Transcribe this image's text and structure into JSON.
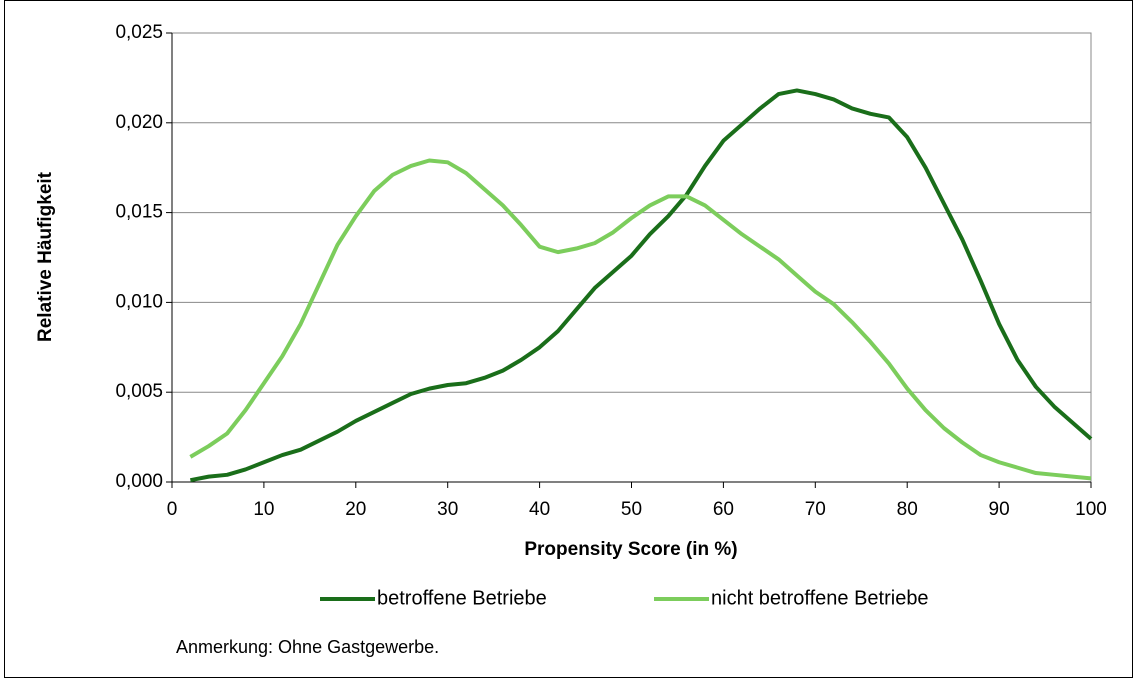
{
  "chart_data": {
    "type": "line",
    "xlabel": "Propensity Score (in %)",
    "ylabel": "Relative Häufigkeit",
    "annotation": "Anmerkung: Ohne Gastgewerbe.",
    "x": [
      2,
      4,
      6,
      8,
      10,
      12,
      14,
      16,
      18,
      20,
      22,
      24,
      26,
      28,
      30,
      32,
      34,
      36,
      38,
      40,
      42,
      44,
      46,
      48,
      50,
      52,
      54,
      56,
      58,
      60,
      62,
      64,
      66,
      68,
      70,
      72,
      74,
      76,
      78,
      80,
      82,
      84,
      86,
      88,
      90,
      92,
      94,
      96,
      98,
      100
    ],
    "series": [
      {
        "name": "betroffene Betriebe",
        "color": "#1a6e1a",
        "values": [
          0.0001,
          0.0003,
          0.0004,
          0.0007,
          0.0011,
          0.0015,
          0.0018,
          0.0023,
          0.0028,
          0.0034,
          0.0039,
          0.0044,
          0.0049,
          0.0052,
          0.0054,
          0.0055,
          0.0058,
          0.0062,
          0.0068,
          0.0075,
          0.0084,
          0.0096,
          0.0108,
          0.0117,
          0.0126,
          0.0138,
          0.0148,
          0.016,
          0.0176,
          0.019,
          0.0199,
          0.0208,
          0.0216,
          0.0218,
          0.0216,
          0.0213,
          0.0208,
          0.0205,
          0.0203,
          0.0192,
          0.0175,
          0.0155,
          0.0135,
          0.0112,
          0.0088,
          0.0068,
          0.0053,
          0.0042,
          0.0033,
          0.0024
        ]
      },
      {
        "name": "nicht betroffene Betriebe",
        "color": "#7ccd5c",
        "values": [
          0.0014,
          0.002,
          0.0027,
          0.004,
          0.0055,
          0.007,
          0.0088,
          0.011,
          0.0132,
          0.0148,
          0.0162,
          0.0171,
          0.0176,
          0.0179,
          0.0178,
          0.0172,
          0.0163,
          0.0154,
          0.0143,
          0.0131,
          0.0128,
          0.013,
          0.0133,
          0.0139,
          0.0147,
          0.0154,
          0.0159,
          0.0159,
          0.0154,
          0.0146,
          0.0138,
          0.0131,
          0.0124,
          0.0115,
          0.0106,
          0.0099,
          0.0089,
          0.0078,
          0.0066,
          0.0052,
          0.004,
          0.003,
          0.0022,
          0.0015,
          0.0011,
          0.0008,
          0.0005,
          0.0004,
          0.0003,
          0.0002
        ]
      }
    ],
    "xlim": [
      0,
      100
    ],
    "xticks": [
      0,
      10,
      20,
      30,
      40,
      50,
      60,
      70,
      80,
      90,
      100
    ],
    "ylim": [
      0,
      0.025
    ],
    "yticks": [
      {
        "value": 0,
        "label": "0,000"
      },
      {
        "value": 0.005,
        "label": "0,005"
      },
      {
        "value": 0.01,
        "label": "0,010"
      },
      {
        "value": 0.015,
        "label": "0,015"
      },
      {
        "value": 0.02,
        "label": "0,020"
      },
      {
        "value": 0.025,
        "label": "0,025"
      }
    ],
    "grid": true,
    "legend": "bottom"
  }
}
